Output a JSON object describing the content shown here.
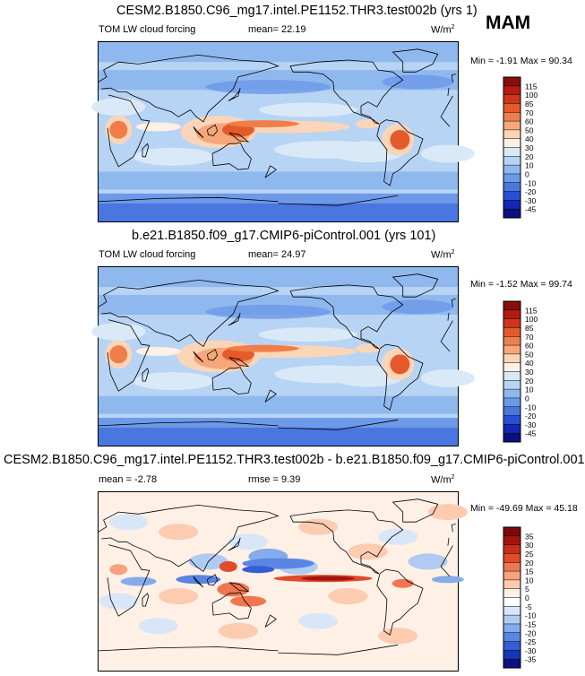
{
  "season": "MAM",
  "panels": [
    {
      "title": "CESM2.B1850.C96_mg17.intel.PE1152.THR3.test002b (yrs 1)",
      "variable": "TOM LW cloud forcing",
      "stat": "mean=  22.19",
      "units": "W/m",
      "units_sup": "2",
      "minmax": "Min = -1.91 Max = 90.34",
      "kind": "abs"
    },
    {
      "title": "b.e21.B1850.f09_g17.CMIP6-piControl.001 (yrs 101)",
      "variable": "TOM LW cloud forcing",
      "stat": "mean=  24.97",
      "units": "W/m",
      "units_sup": "2",
      "minmax": "Min = -1.52 Max = 99.74",
      "kind": "abs"
    },
    {
      "title": "CESM2.B1850.C96_mg17.intel.PE1152.THR3.test002b - b.e21.B1850.f09_g17.CMIP6-piControl.001",
      "stat_mean": "mean =  -2.78",
      "stat_rmse": "rmse =   9.39",
      "units": "W/m",
      "units_sup": "2",
      "minmax": "Min = -49.69 Max = 45.18",
      "kind": "diff"
    }
  ],
  "chart_data": [
    {
      "type": "heatmap",
      "title": "CESM2.B1850.C96_mg17.intel.PE1152.THR3.test002b (yrs 1)",
      "variable": "TOM LW cloud forcing",
      "units": "W/m2",
      "mean": 22.19,
      "min": -1.91,
      "max": 90.34,
      "colorbar_levels": [
        "115",
        "100",
        "85",
        "70",
        "60",
        "50",
        "40",
        "30",
        "20",
        "10",
        "0",
        "-10",
        "-20",
        "-30",
        "-45"
      ],
      "colorbar_colors": [
        "#8c0d0d",
        "#b01e10",
        "#d0351a",
        "#e55a2b",
        "#f07e4a",
        "#f6a77a",
        "#fbd5b8",
        "#fdf1e4",
        "#d9e9f8",
        "#b7d4f4",
        "#8fb9ee",
        "#6c99e8",
        "#4a76e0",
        "#2a4fd6",
        "#1426b4",
        "#0a1080"
      ]
    },
    {
      "type": "heatmap",
      "title": "b.e21.B1850.f09_g17.CMIP6-piControl.001 (yrs 101)",
      "variable": "TOM LW cloud forcing",
      "units": "W/m2",
      "mean": 24.97,
      "min": -1.52,
      "max": 99.74,
      "colorbar_levels": [
        "115",
        "100",
        "85",
        "70",
        "60",
        "50",
        "40",
        "30",
        "20",
        "10",
        "0",
        "-10",
        "-20",
        "-30",
        "-45"
      ],
      "colorbar_colors": [
        "#8c0d0d",
        "#b01e10",
        "#d0351a",
        "#e55a2b",
        "#f07e4a",
        "#f6a77a",
        "#fbd5b8",
        "#fdf1e4",
        "#d9e9f8",
        "#b7d4f4",
        "#8fb9ee",
        "#6c99e8",
        "#4a76e0",
        "#2a4fd6",
        "#1426b4",
        "#0a1080"
      ]
    },
    {
      "type": "heatmap",
      "title": "CESM2.B1850.C96_mg17.intel.PE1152.THR3.test002b - b.e21.B1850.f09_g17.CMIP6-piControl.001",
      "units": "W/m2",
      "mean": -2.78,
      "rmse": 9.39,
      "min": -49.69,
      "max": 45.18,
      "colorbar_levels": [
        "35",
        "30",
        "25",
        "20",
        "15",
        "10",
        "5",
        "0",
        "-5",
        "-10",
        "-15",
        "-20",
        "-25",
        "-30",
        "-35"
      ],
      "colorbar_colors": [
        "#7a0a0a",
        "#a3150f",
        "#c82d1a",
        "#e04b2a",
        "#ef7650",
        "#f7a27c",
        "#fccbb0",
        "#fff0e6",
        "#ffffff",
        "#d8e6f8",
        "#b0cbf2",
        "#86abeb",
        "#5b85e2",
        "#345dd6",
        "#1a34b8",
        "#0b1380"
      ]
    }
  ]
}
